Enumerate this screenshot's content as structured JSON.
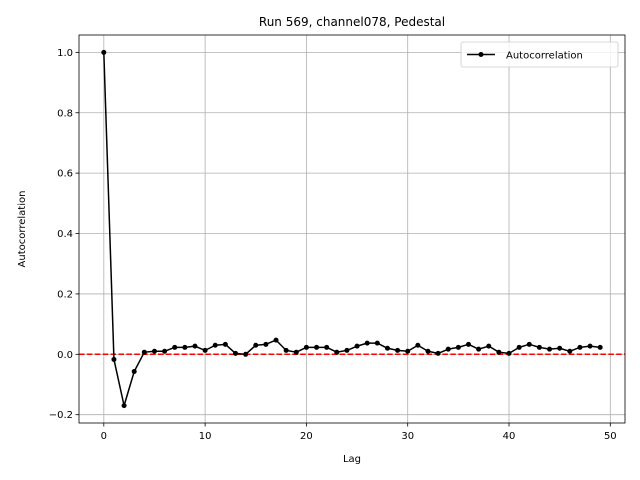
{
  "chart_data": {
    "type": "line",
    "title": "Run 569, channel078, Pedestal",
    "xlabel": "Lag",
    "ylabel": "Autocorrelation",
    "xlim": [
      -2.45,
      51.45
    ],
    "ylim": [
      -0.2275,
      1.0575
    ],
    "x_ticks": [
      0,
      10,
      20,
      30,
      40,
      50
    ],
    "y_ticks": [
      -0.2,
      0.0,
      0.2,
      0.4,
      0.6,
      0.8,
      1.0
    ],
    "x_tick_labels": [
      "0",
      "10",
      "20",
      "30",
      "40",
      "50"
    ],
    "y_tick_labels": [
      "−0.2",
      "0.0",
      "0.2",
      "0.4",
      "0.6",
      "0.8",
      "1.0"
    ],
    "grid": true,
    "legend_position": "top-right",
    "series": [
      {
        "name": "Autocorrelation",
        "color": "#000000",
        "marker": "circle",
        "x": [
          0,
          1,
          2,
          3,
          4,
          5,
          6,
          7,
          8,
          9,
          10,
          11,
          12,
          13,
          14,
          15,
          16,
          17,
          18,
          19,
          20,
          21,
          22,
          23,
          24,
          25,
          26,
          27,
          28,
          29,
          30,
          31,
          32,
          33,
          34,
          35,
          36,
          37,
          38,
          39,
          40,
          41,
          42,
          43,
          44,
          45,
          46,
          47,
          48,
          49
        ],
        "values": [
          1.0,
          -0.017,
          -0.17,
          -0.057,
          0.007,
          0.01,
          0.01,
          0.023,
          0.023,
          0.027,
          0.013,
          0.03,
          0.033,
          0.003,
          0.0,
          0.03,
          0.033,
          0.047,
          0.013,
          0.007,
          0.023,
          0.023,
          0.023,
          0.007,
          0.013,
          0.027,
          0.037,
          0.037,
          0.02,
          0.013,
          0.01,
          0.03,
          0.01,
          0.003,
          0.017,
          0.023,
          0.033,
          0.017,
          0.027,
          0.007,
          0.003,
          0.023,
          0.033,
          0.023,
          0.017,
          0.02,
          0.01,
          0.023,
          0.027,
          0.023
        ]
      }
    ],
    "reference_line": {
      "y": 0.0,
      "color": "#ff0000",
      "style": "dashed"
    }
  }
}
